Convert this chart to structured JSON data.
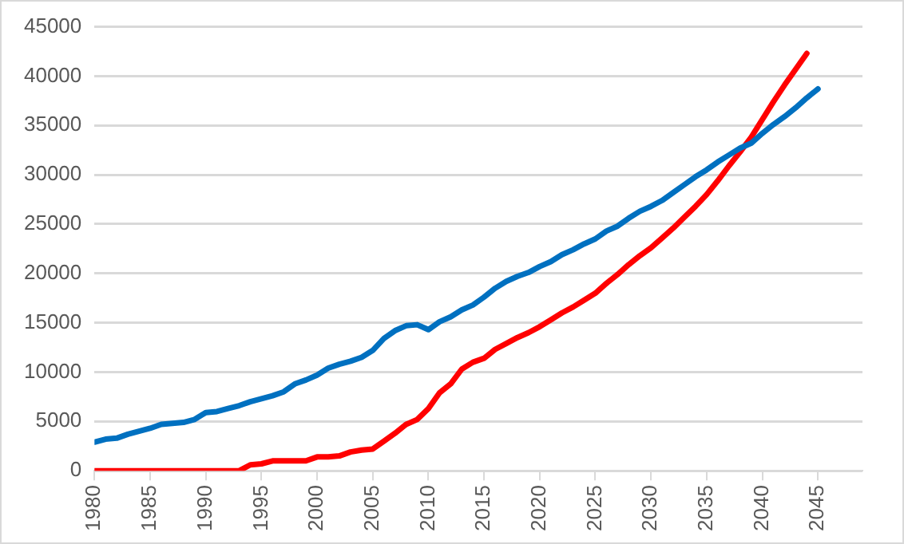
{
  "chart_data": {
    "type": "line",
    "x": [
      1980,
      1981,
      1982,
      1983,
      1984,
      1985,
      1986,
      1987,
      1988,
      1989,
      1990,
      1991,
      1992,
      1993,
      1994,
      1995,
      1996,
      1997,
      1998,
      1999,
      2000,
      2001,
      2002,
      2003,
      2004,
      2005,
      2006,
      2007,
      2008,
      2009,
      2010,
      2011,
      2012,
      2013,
      2014,
      2015,
      2016,
      2017,
      2018,
      2019,
      2020,
      2021,
      2022,
      2023,
      2024,
      2025,
      2026,
      2027,
      2028,
      2029,
      2030,
      2031,
      2032,
      2033,
      2034,
      2035,
      2036,
      2037,
      2038,
      2039,
      2040,
      2041,
      2042,
      2043,
      2044,
      2045
    ],
    "series": [
      {
        "color": "#0070c0",
        "values": [
          2900,
          3200,
          3300,
          3700,
          4000,
          4300,
          4700,
          4800,
          4900,
          5200,
          5900,
          6000,
          6300,
          6600,
          7000,
          7300,
          7600,
          8000,
          8800,
          9200,
          9700,
          10400,
          10800,
          11100,
          11500,
          12200,
          13400,
          14200,
          14700,
          14800,
          14300,
          15100,
          15600,
          16300,
          16800,
          17600,
          18500,
          19200,
          19700,
          20100,
          20700,
          21200,
          21900,
          22400,
          23000,
          23500,
          24300,
          24800,
          25600,
          26300,
          26800,
          27400,
          28200,
          29000,
          29800,
          30500,
          31300,
          32000,
          32700,
          33200,
          34200,
          35100,
          35900,
          36800,
          37800,
          38700
        ]
      },
      {
        "color": "#ff0000",
        "values": [
          0,
          0,
          0,
          0,
          0,
          0,
          0,
          0,
          0,
          0,
          0,
          0,
          0,
          0,
          600,
          700,
          1000,
          1000,
          1000,
          1000,
          1400,
          1400,
          1500,
          1900,
          2100,
          2200,
          3000,
          3800,
          4700,
          5200,
          6300,
          7900,
          8800,
          10300,
          11000,
          11400,
          12300,
          12900,
          13500,
          14000,
          14600,
          15300,
          16000,
          16600,
          17300,
          18000,
          19000,
          19900,
          20900,
          21800,
          22600,
          23600,
          24600,
          25700,
          26800,
          28000,
          29400,
          30900,
          32300,
          33800,
          35600,
          37400,
          39100,
          40700,
          42300,
          null
        ]
      }
    ],
    "xlim": [
      1980,
      2049
    ],
    "xticks": [
      1980,
      1985,
      1990,
      1995,
      2000,
      2005,
      2010,
      2015,
      2020,
      2025,
      2030,
      2035,
      2040,
      2045
    ],
    "ylim": [
      0,
      45000
    ],
    "yticks": [
      0,
      5000,
      10000,
      15000,
      20000,
      25000,
      30000,
      35000,
      40000,
      45000
    ],
    "grid": "y",
    "legend": false,
    "marker": "none",
    "line_style": "solid"
  }
}
